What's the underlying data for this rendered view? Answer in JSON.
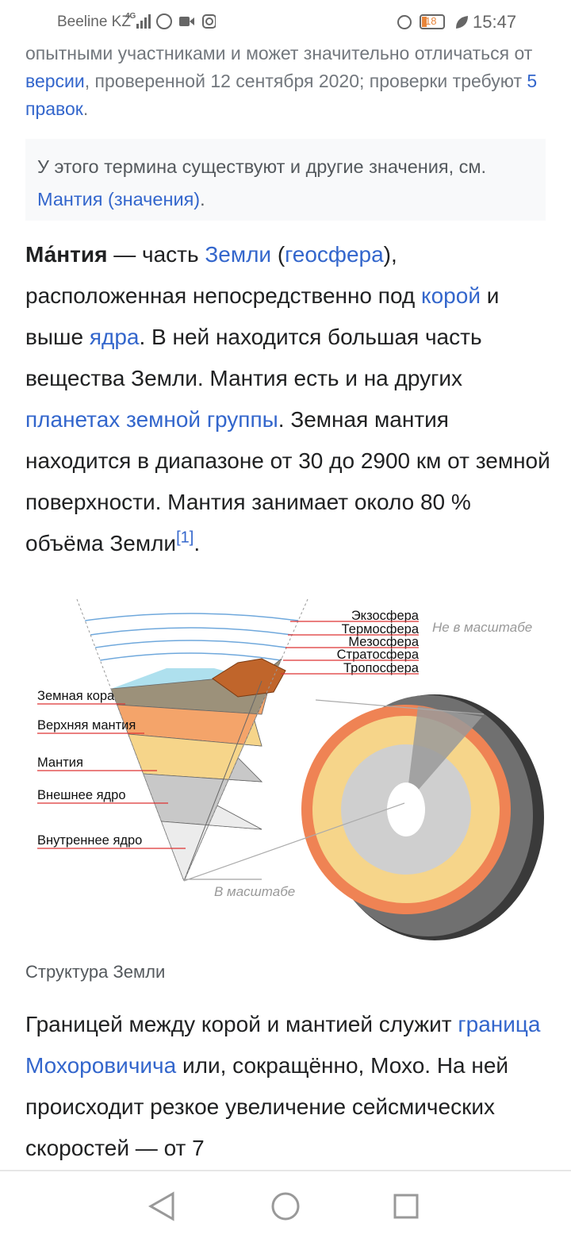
{
  "status_bar": {
    "carrier": "Beeline KZ",
    "network": "4G",
    "battery": "18",
    "time": "15:47"
  },
  "notice": {
    "segments": [
      {
        "text": "опытными участниками и может значительно отличаться от "
      },
      {
        "text": "версии",
        "link": true
      },
      {
        "text": ", проверенной 12 сентября 2020; проверки требуют "
      },
      {
        "text": "5 правок",
        "link": true
      },
      {
        "text": "."
      }
    ]
  },
  "hatnote": {
    "segments": [
      {
        "text": "У этого термина существуют и другие значения, см. "
      },
      {
        "text": "Мантия (значения)",
        "link": true
      },
      {
        "text": "."
      }
    ]
  },
  "paragraphs": [
    {
      "segments": [
        {
          "text": "Ма́нтия",
          "bold": true
        },
        {
          "text": " — часть "
        },
        {
          "text": "Земли",
          "link": true
        },
        {
          "text": " ("
        },
        {
          "text": "геосфера",
          "link": true
        },
        {
          "text": "), расположенная непосредственно под "
        },
        {
          "text": "корой",
          "link": true
        },
        {
          "text": " и выше "
        },
        {
          "text": "ядра",
          "link": true
        },
        {
          "text": ". В ней находится большая часть вещества Земли. Мантия есть и на других "
        },
        {
          "text": "планетах земной группы",
          "link": true
        },
        {
          "text": ". Земная мантия находится в диапазоне от 30 до 2900 км от земной поверхности. Мантия занимает около 80 % объёма Земли"
        },
        {
          "text": "[1]",
          "link": true,
          "sup": true
        },
        {
          "text": "."
        }
      ]
    },
    {
      "segments": [
        {
          "text": "Границей между корой и мантией служит "
        },
        {
          "text": "граница Мохоровичича",
          "link": true
        },
        {
          "text": " или, сокращённо, Мохо. На ней происходит резкое увеличение сейсмических скоростей — от 7"
        }
      ]
    }
  ],
  "figure": {
    "layers": [
      "Земная кора",
      "Верхняя мантия",
      "Мантия",
      "Внешнее ядро",
      "Внутреннее ядро"
    ],
    "atmosphere": [
      "Экзосфера",
      "Термосфера",
      "Мезосфера",
      "Стратосфера",
      "Тропосфера"
    ],
    "not_to_scale": "Не в масштабе",
    "to_scale": "В масштабе",
    "caption": "Структура Земли"
  }
}
